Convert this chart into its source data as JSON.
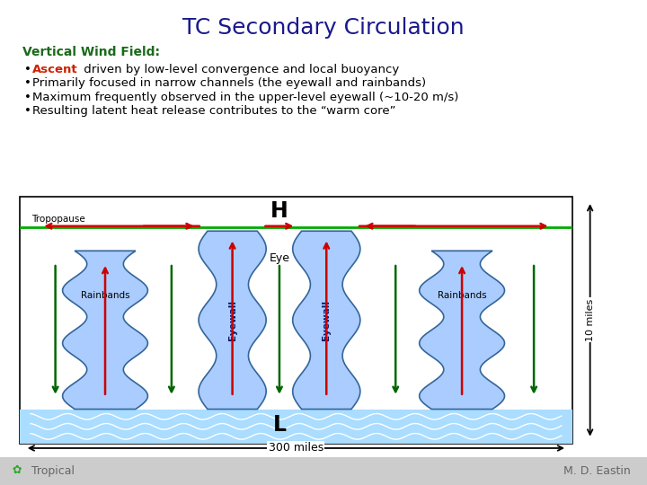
{
  "title": "TC Secondary Circulation",
  "title_color": "#1a1a8c",
  "title_fontsize": 18,
  "subtitle": "Vertical Wind Field:",
  "subtitle_color": "#1a6b1a",
  "subtitle_fontsize": 10,
  "bullet_fontsize": 9.5,
  "bg_color": "#ffffff",
  "footer_bg": "#cccccc",
  "tropopause_color": "#00aa00",
  "ocean_color": "#aaddff",
  "eyewall_color": "#aaccff",
  "rainband_color": "#aaccff",
  "arrow_up_color": "#cc0000",
  "arrow_down_color": "#006600",
  "arrow_horiz_color": "#cc0000",
  "label_300miles": "300 miles",
  "label_10miles": "10 miles",
  "label_tropopause": "Tropopause",
  "label_eye": "Eye",
  "label_eyewall": "Eyewall",
  "label_rainbands": "Rainbands",
  "label_H": "H",
  "label_L": "L",
  "footer_left": "Tropical",
  "footer_right": "M. D. Eastin",
  "bullets": [
    [
      {
        "text": "Ascent",
        "color": "#cc2200",
        "bold": true
      },
      {
        "text": " driven by low-level convergence and local buoyancy",
        "color": "#000000",
        "bold": false
      }
    ],
    [
      {
        "text": "Primarily focused in narrow channels (the eyewall and rainbands)",
        "color": "#000000",
        "bold": false
      }
    ],
    [
      {
        "text": "Maximum frequently observed in the upper-level eyewall (~10-20 m/s)",
        "color": "#000000",
        "bold": false
      }
    ],
    [
      {
        "text": "Resulting latent heat release contributes to the “warm core”",
        "color": "#000000",
        "bold": false
      }
    ]
  ]
}
